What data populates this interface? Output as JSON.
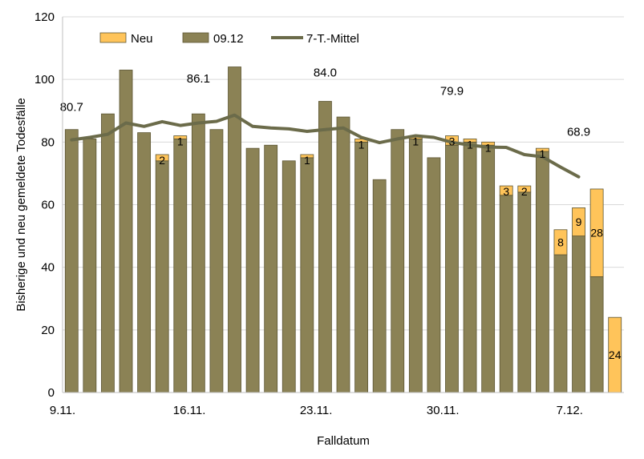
{
  "chart_data": {
    "type": "bar",
    "stacked": true,
    "xlabel": "Falldatum",
    "ylabel": "Bisherige und neu gemeldete Todesfälle",
    "ylim": [
      0,
      120
    ],
    "yticks": [
      "0",
      "20",
      "40",
      "60",
      "80",
      "100",
      "120"
    ],
    "grid": true,
    "legend_position": "top",
    "x": [
      "9.11.",
      "10.11.",
      "11.11.",
      "12.11.",
      "13.11.",
      "14.11.",
      "15.11.",
      "16.11.",
      "17.11.",
      "18.11.",
      "19.11.",
      "20.11.",
      "21.11.",
      "22.11.",
      "23.11.",
      "24.11.",
      "25.11.",
      "26.11.",
      "27.11.",
      "28.11.",
      "29.11.",
      "30.11.",
      "1.12.",
      "2.12.",
      "3.12.",
      "4.12.",
      "5.12.",
      "6.12.",
      "7.12.",
      "8.12.",
      "9.12."
    ],
    "xtick_labels": [
      {
        "index": 0,
        "label": "9.11."
      },
      {
        "index": 7,
        "label": "16.11."
      },
      {
        "index": 14,
        "label": "23.11."
      },
      {
        "index": 21,
        "label": "30.11."
      },
      {
        "index": 28,
        "label": "7.12."
      }
    ],
    "series": [
      {
        "name": "09.12",
        "color": "#8b8255",
        "values": [
          84,
          81,
          89,
          103,
          83,
          74,
          81,
          89,
          84,
          104,
          78,
          79,
          74,
          75,
          93,
          88,
          80,
          68,
          84,
          81,
          75,
          79,
          80,
          79,
          63,
          64,
          77,
          44,
          50,
          37,
          0
        ]
      },
      {
        "name": "Neu",
        "color": "#ffc45a",
        "values": [
          0,
          0,
          0,
          0,
          0,
          2,
          1,
          0,
          0,
          0,
          0,
          0,
          0,
          1,
          0,
          0,
          1,
          0,
          0,
          1,
          0,
          3,
          1,
          1,
          3,
          2,
          1,
          8,
          9,
          28,
          24
        ],
        "labels": [
          "",
          "",
          "",
          "",
          "",
          "2",
          "1",
          "",
          "",
          "",
          "",
          "",
          "",
          "1",
          "",
          "",
          "1",
          "",
          "",
          "1",
          "",
          "3",
          "1",
          "1",
          "3",
          "2",
          "1",
          "8",
          "9",
          "28",
          "24"
        ]
      }
    ],
    "line": {
      "name": "7-T.-Mittel",
      "color": "#6b6b4a",
      "values": [
        80.7,
        81.5,
        82.5,
        86.1,
        85.0,
        86.5,
        85.3,
        86.1,
        86.6,
        88.6,
        85.0,
        84.5,
        84.2,
        83.4,
        84.0,
        84.5,
        81.5,
        79.8,
        81.0,
        82.0,
        81.5,
        79.9,
        79.0,
        78.4,
        78.3,
        76.0,
        75.3,
        72.0,
        68.9
      ]
    },
    "annotations": [
      {
        "text": "80.7",
        "x_index": 0,
        "y": 90
      },
      {
        "text": "86.1",
        "x_index": 7,
        "y": 99
      },
      {
        "text": "84.0",
        "x_index": 14,
        "y": 101
      },
      {
        "text": "79.9",
        "x_index": 21,
        "y": 95
      },
      {
        "text": "68.9",
        "x_index": 28,
        "y": 82
      }
    ]
  }
}
